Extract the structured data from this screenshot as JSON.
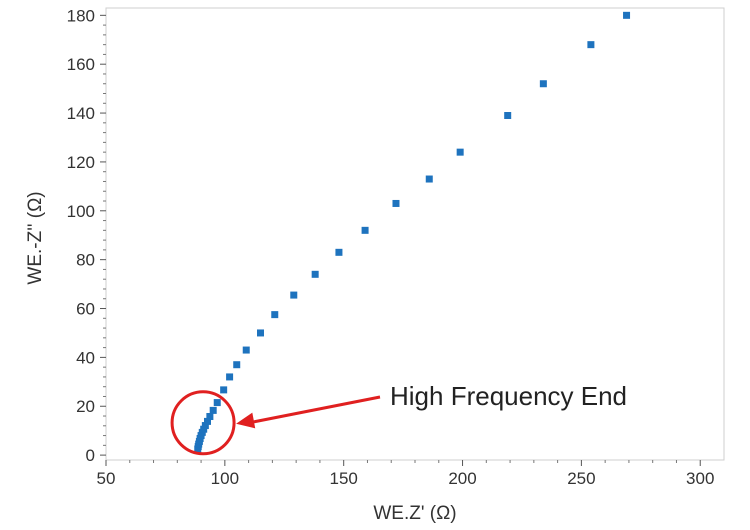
{
  "chart_data": {
    "type": "scatter",
    "xlabel": "WE.Z' (Ω)",
    "ylabel": "WE.-Z'' (Ω)",
    "xlim": [
      50,
      310
    ],
    "ylim": [
      -2,
      183
    ],
    "xticks": [
      50,
      100,
      150,
      200,
      250,
      300
    ],
    "yticks": [
      0,
      20,
      40,
      60,
      80,
      100,
      120,
      140,
      160,
      180
    ],
    "grid": false,
    "legend": "none",
    "series": [
      {
        "x": [
          88.6,
          88.8,
          89.0,
          89.3,
          89.6,
          90.0,
          90.5,
          91.1,
          91.8,
          92.7,
          93.7,
          95.1,
          96.8,
          99.5,
          102,
          105,
          109,
          115,
          121,
          129,
          138,
          148,
          159,
          172,
          186,
          199,
          219,
          234,
          254,
          269
        ],
        "y": [
          2.5,
          3.5,
          4.5,
          5.6,
          6.8,
          8.0,
          9.3,
          10.6,
          12.1,
          13.8,
          15.8,
          18.3,
          21.5,
          26.7,
          32,
          37,
          43,
          50,
          57.5,
          65.5,
          74,
          83,
          92,
          103,
          113,
          124,
          139,
          152,
          168,
          180
        ],
        "color": "#1e73be",
        "marker": "square"
      }
    ],
    "annotations": [
      {
        "text": "High Frequency End",
        "target_x": 90,
        "target_y": 12,
        "color": "#e02020"
      }
    ]
  }
}
